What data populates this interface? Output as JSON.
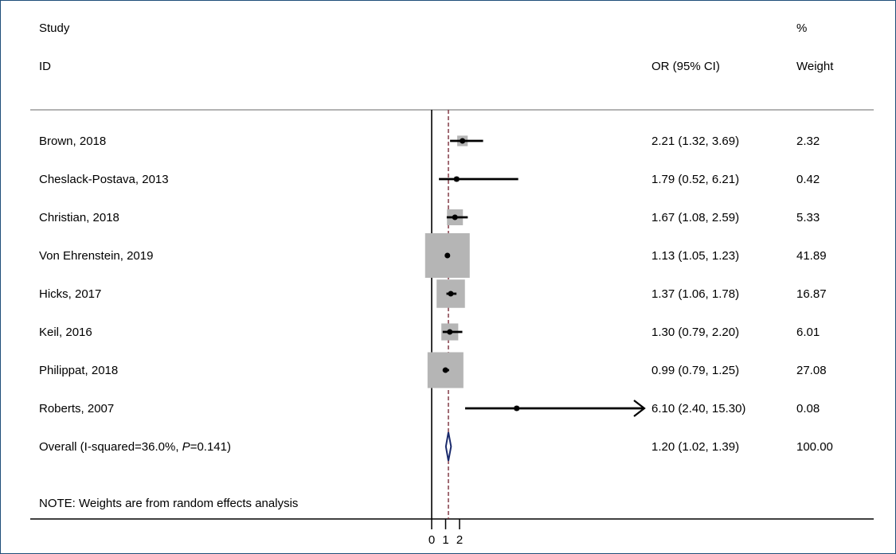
{
  "chart_data": {
    "type": "forest",
    "header": {
      "study_line1": "Study",
      "study_line2": "ID",
      "or_label": "OR (95% CI)",
      "weight_line1": "%",
      "weight_line2": "Weight"
    },
    "studies": [
      {
        "label": "Brown, 2018",
        "or": 2.21,
        "lo": 1.32,
        "hi": 3.69,
        "ci_text": "2.21 (1.32, 3.69)",
        "weight": 2.32,
        "weight_text": "2.32"
      },
      {
        "label": "Cheslack-Postava, 2013",
        "or": 1.79,
        "lo": 0.52,
        "hi": 6.21,
        "ci_text": "1.79 (0.52, 6.21)",
        "weight": 0.42,
        "weight_text": "0.42"
      },
      {
        "label": "Christian, 2018",
        "or": 1.67,
        "lo": 1.08,
        "hi": 2.59,
        "ci_text": "1.67 (1.08, 2.59)",
        "weight": 5.33,
        "weight_text": "5.33"
      },
      {
        "label": "Von Ehrenstein, 2019",
        "or": 1.13,
        "lo": 1.05,
        "hi": 1.23,
        "ci_text": "1.13 (1.05, 1.23)",
        "weight": 41.89,
        "weight_text": "41.89"
      },
      {
        "label": "Hicks, 2017",
        "or": 1.37,
        "lo": 1.06,
        "hi": 1.78,
        "ci_text": "1.37 (1.06, 1.78)",
        "weight": 16.87,
        "weight_text": "16.87"
      },
      {
        "label": "Keil, 2016",
        "or": 1.3,
        "lo": 0.79,
        "hi": 2.2,
        "ci_text": "1.30 (0.79, 2.20)",
        "weight": 6.01,
        "weight_text": "6.01"
      },
      {
        "label": "Philippat, 2018",
        "or": 0.99,
        "lo": 0.79,
        "hi": 1.25,
        "ci_text": "0.99 (0.79, 1.25)",
        "weight": 27.08,
        "weight_text": "27.08"
      },
      {
        "label": "Roberts, 2007",
        "or": 6.1,
        "lo": 2.4,
        "hi": 15.3,
        "ci_text": "6.10 (2.40, 15.30)",
        "weight": 0.08,
        "weight_text": "0.08",
        "arrow_right": true
      }
    ],
    "overall": {
      "label_prefix": "Overall (I-squared=36.0%, ",
      "label_p": "P",
      "label_suffix": "=0.141)",
      "or": 1.2,
      "lo": 1.02,
      "hi": 1.39,
      "ci_text": "1.20 (1.02, 1.39)",
      "weight_text": "100.00"
    },
    "note": "NOTE: Weights are from random effects analysis",
    "x_ticks": [
      {
        "value": 0,
        "label": "0"
      },
      {
        "value": 1,
        "label": "1"
      },
      {
        "value": 2,
        "label": "2"
      }
    ],
    "null_line_value": 0,
    "reference_line_value": 1.2,
    "colors": {
      "box": "#b5b5b5",
      "ci_line": "#000000",
      "point": "#000000",
      "reference_line": "#7b2e3a",
      "diamond": "#1a2a6c",
      "rule": "#9a9a9a",
      "frame": "#1f4e79"
    }
  }
}
